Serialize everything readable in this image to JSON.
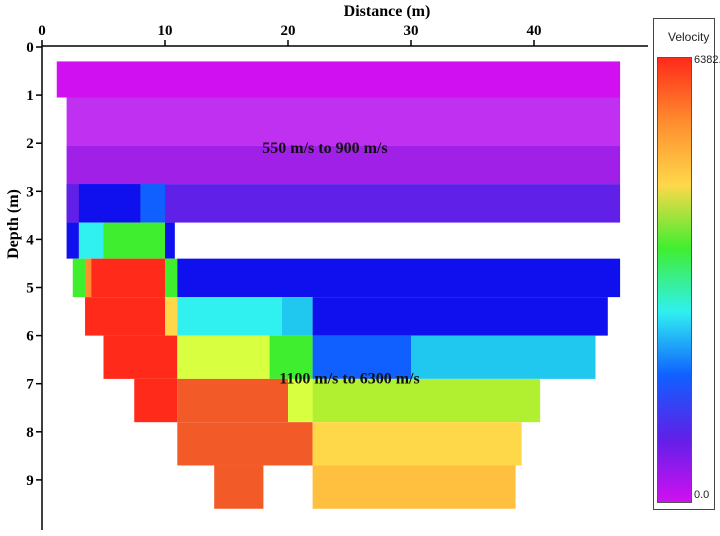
{
  "chart_data": {
    "type": "heatmap",
    "title": "",
    "xlabel": "Distance (m)",
    "ylabel": "Depth (m)",
    "x_ticks": [
      0,
      10,
      20,
      30,
      40
    ],
    "y_ticks": [
      0,
      1,
      2,
      3,
      4,
      5,
      6,
      7,
      8,
      9
    ],
    "xlim": [
      0,
      47
    ],
    "ylim": [
      9.8,
      0
    ],
    "colorbar": {
      "label": "Velocity",
      "min": "0.0",
      "max": "6382.",
      "min_value": 0,
      "max_value": 6382
    },
    "colors": {
      "red": "#ff2a1a",
      "orange_red": "#f25a28",
      "orange": "#ff8c2e",
      "light_orange": "#ffc040",
      "yellow": "#ffd84a",
      "yellow_green": "#d8ff40",
      "light_green": "#b0f030",
      "green": "#40ee30",
      "cyan": "#30f0f0",
      "light_blue": "#20c8f0",
      "blue": "#1060ff",
      "deep_blue": "#1010ee",
      "violet_blue": "#6020e8",
      "purple": "#a020e8",
      "magenta": "#d010f0",
      "violet": "#c030f0"
    },
    "annotations": [
      {
        "text": "550 m/s to 900 m/s",
        "x": 23,
        "depth": 2.2
      },
      {
        "text": "1100 m/s to 6300 m/s",
        "x": 25,
        "depth": 7.0
      }
    ],
    "cells": [
      {
        "x0": 1.2,
        "x1": 47,
        "z0": 0.3,
        "z1": 1.05,
        "v": 700,
        "color": "magenta"
      },
      {
        "x0": 2,
        "x1": 47,
        "z0": 1.05,
        "z1": 2.05,
        "v": 750,
        "color": "violet"
      },
      {
        "x0": 2,
        "x1": 47,
        "z0": 2.05,
        "z1": 2.85,
        "v": 800,
        "color": "purple"
      },
      {
        "x0": 2,
        "x1": 47,
        "z0": 2.85,
        "z1": 3.65,
        "v": 850,
        "color": "violet_blue"
      },
      {
        "x0": 2,
        "x1": 3,
        "z0": 2.85,
        "z1": 3.65,
        "v": 1100,
        "color": "violet_blue"
      },
      {
        "x0": 3,
        "x1": 8,
        "z0": 2.85,
        "z1": 3.65,
        "v": 1500,
        "color": "deep_blue"
      },
      {
        "x0": 8,
        "x1": 10,
        "z0": 2.85,
        "z1": 3.65,
        "v": 1800,
        "color": "blue"
      },
      {
        "x0": 2,
        "x1": 3,
        "z0": 3.65,
        "z1": 4.4,
        "v": 1500,
        "color": "deep_blue"
      },
      {
        "x0": 3,
        "x1": 5,
        "z0": 3.65,
        "z1": 4.4,
        "v": 2500,
        "color": "cyan"
      },
      {
        "x0": 5,
        "x1": 10,
        "z0": 3.65,
        "z1": 4.4,
        "v": 3200,
        "color": "green"
      },
      {
        "x0": 10,
        "x1": 10.8,
        "z0": 3.65,
        "z1": 4.4,
        "v": 1500,
        "color": "deep_blue"
      },
      {
        "x0": 2.5,
        "x1": 3.5,
        "z0": 4.4,
        "z1": 5.2,
        "v": 3200,
        "color": "green"
      },
      {
        "x0": 3.5,
        "x1": 4,
        "z0": 4.4,
        "z1": 5.2,
        "v": 5000,
        "color": "orange"
      },
      {
        "x0": 4,
        "x1": 10,
        "z0": 4.4,
        "z1": 5.2,
        "v": 6200,
        "color": "red"
      },
      {
        "x0": 10,
        "x1": 11,
        "z0": 4.4,
        "z1": 5.2,
        "v": 3200,
        "color": "green"
      },
      {
        "x0": 11,
        "x1": 47,
        "z0": 4.4,
        "z1": 5.2,
        "v": 1500,
        "color": "deep_blue"
      },
      {
        "x0": 3.5,
        "x1": 10,
        "z0": 5.2,
        "z1": 6.0,
        "v": 6200,
        "color": "red"
      },
      {
        "x0": 10,
        "x1": 11,
        "z0": 5.2,
        "z1": 6.0,
        "v": 4000,
        "color": "yellow"
      },
      {
        "x0": 11,
        "x1": 19.5,
        "z0": 5.2,
        "z1": 6.0,
        "v": 2500,
        "color": "cyan"
      },
      {
        "x0": 19.5,
        "x1": 22,
        "z0": 5.2,
        "z1": 6.0,
        "v": 2300,
        "color": "light_blue"
      },
      {
        "x0": 22,
        "x1": 46,
        "z0": 5.2,
        "z1": 6.0,
        "v": 1500,
        "color": "deep_blue"
      },
      {
        "x0": 5,
        "x1": 11,
        "z0": 6.0,
        "z1": 6.9,
        "v": 6200,
        "color": "red"
      },
      {
        "x0": 11,
        "x1": 18.5,
        "z0": 6.0,
        "z1": 6.9,
        "v": 3900,
        "color": "yellow_green"
      },
      {
        "x0": 18.5,
        "x1": 22,
        "z0": 6.0,
        "z1": 6.9,
        "v": 3200,
        "color": "green"
      },
      {
        "x0": 22,
        "x1": 30,
        "z0": 6.0,
        "z1": 6.9,
        "v": 1900,
        "color": "blue"
      },
      {
        "x0": 30,
        "x1": 45,
        "z0": 6.0,
        "z1": 6.9,
        "v": 2300,
        "color": "light_blue"
      },
      {
        "x0": 7.5,
        "x1": 11,
        "z0": 6.9,
        "z1": 7.8,
        "v": 6200,
        "color": "red"
      },
      {
        "x0": 11,
        "x1": 20,
        "z0": 6.9,
        "z1": 7.8,
        "v": 5500,
        "color": "orange_red"
      },
      {
        "x0": 20,
        "x1": 22,
        "z0": 6.9,
        "z1": 7.8,
        "v": 3900,
        "color": "yellow_green"
      },
      {
        "x0": 22,
        "x1": 40.5,
        "z0": 6.9,
        "z1": 7.8,
        "v": 3300,
        "color": "light_green"
      },
      {
        "x0": 11,
        "x1": 22,
        "z0": 7.8,
        "z1": 8.7,
        "v": 5500,
        "color": "orange_red"
      },
      {
        "x0": 22,
        "x1": 39,
        "z0": 7.8,
        "z1": 8.7,
        "v": 4000,
        "color": "yellow"
      },
      {
        "x0": 14,
        "x1": 18,
        "z0": 8.7,
        "z1": 9.6,
        "v": 5500,
        "color": "orange_red"
      },
      {
        "x0": 22,
        "x1": 38.5,
        "z0": 8.7,
        "z1": 9.6,
        "v": 4500,
        "color": "light_orange"
      }
    ]
  }
}
